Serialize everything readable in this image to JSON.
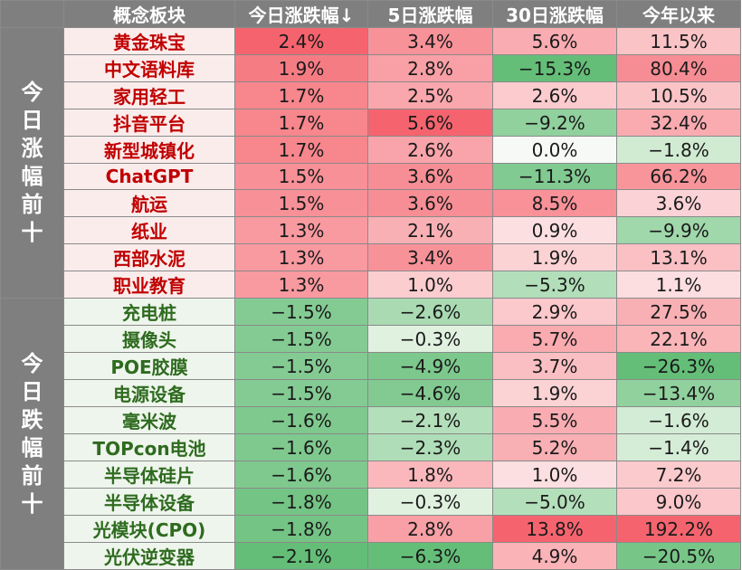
{
  "chart_data": {
    "type": "table",
    "columns": [
      "概念板块",
      "今日涨跌幅↓",
      "5日涨跌幅",
      "30日涨跌幅",
      "今年以来"
    ],
    "groups": [
      {
        "label": "今日涨幅前十",
        "name_color": "#c00000",
        "rows": [
          {
            "name": "黄金珠宝",
            "values": [
              "2.4%",
              "3.4%",
              "5.6%",
              "11.5%"
            ]
          },
          {
            "name": "中文语料库",
            "values": [
              "1.9%",
              "2.8%",
              "−15.3%",
              "80.4%"
            ]
          },
          {
            "name": "家用轻工",
            "values": [
              "1.7%",
              "2.5%",
              "2.6%",
              "10.5%"
            ]
          },
          {
            "name": "抖音平台",
            "values": [
              "1.7%",
              "5.6%",
              "−9.2%",
              "32.4%"
            ]
          },
          {
            "name": "新型城镇化",
            "values": [
              "1.7%",
              "2.6%",
              "0.0%",
              "−1.8%"
            ]
          },
          {
            "name": "ChatGPT",
            "values": [
              "1.5%",
              "3.6%",
              "−11.3%",
              "66.2%"
            ]
          },
          {
            "name": "航运",
            "values": [
              "1.5%",
              "3.6%",
              "8.5%",
              "3.6%"
            ]
          },
          {
            "name": "纸业",
            "values": [
              "1.3%",
              "2.1%",
              "0.9%",
              "−9.9%"
            ]
          },
          {
            "name": "西部水泥",
            "values": [
              "1.3%",
              "3.4%",
              "1.9%",
              "13.1%"
            ]
          },
          {
            "name": "职业教育",
            "values": [
              "1.3%",
              "1.0%",
              "−5.3%",
              "1.1%"
            ]
          }
        ]
      },
      {
        "label": "今日跌幅前十",
        "name_color": "#2e6b1f",
        "rows": [
          {
            "name": "充电桩",
            "values": [
              "−1.5%",
              "−2.6%",
              "2.9%",
              "27.5%"
            ]
          },
          {
            "name": "摄像头",
            "values": [
              "−1.5%",
              "−0.3%",
              "5.7%",
              "22.1%"
            ]
          },
          {
            "name": "POE胶膜",
            "values": [
              "−1.5%",
              "−4.9%",
              "3.7%",
              "−26.3%"
            ]
          },
          {
            "name": "电源设备",
            "values": [
              "−1.5%",
              "−4.6%",
              "1.9%",
              "−13.4%"
            ]
          },
          {
            "name": "毫米波",
            "values": [
              "−1.6%",
              "−2.1%",
              "5.5%",
              "−1.6%"
            ]
          },
          {
            "name": "TOPcon电池",
            "values": [
              "−1.6%",
              "−2.3%",
              "5.2%",
              "−1.4%"
            ]
          },
          {
            "name": "半导体硅片",
            "values": [
              "−1.6%",
              "1.8%",
              "1.0%",
              "7.2%"
            ]
          },
          {
            "name": "半导体设备",
            "values": [
              "−1.8%",
              "−0.3%",
              "−5.0%",
              "9.0%"
            ]
          },
          {
            "name": "光模块(CPO)",
            "values": [
              "−1.8%",
              "2.8%",
              "13.8%",
              "192.2%"
            ]
          },
          {
            "name": "光伏逆变器",
            "values": [
              "−2.1%",
              "−6.3%",
              "4.9%",
              "−20.5%"
            ]
          }
        ]
      }
    ]
  }
}
